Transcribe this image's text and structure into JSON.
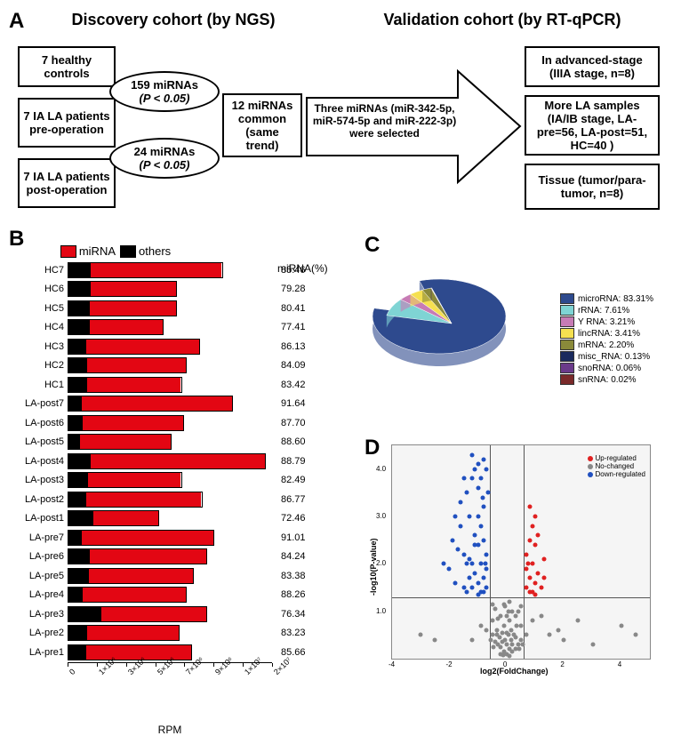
{
  "panelA": {
    "label": "A",
    "discovery_header": "Discovery cohort (by NGS)",
    "validation_header": "Validation cohort (by RT-qPCR)",
    "box1": "7 healthy controls",
    "box2": "7 IA LA patients pre-operation",
    "box3": "7 IA LA patients post-operation",
    "ellipse1_line1": "159 miRNAs",
    "ellipse1_line2": "(P < 0.05)",
    "ellipse2_line1": "24 miRNAs",
    "ellipse2_line2": "(P < 0.05)",
    "box4": "12 miRNAs common (same trend)",
    "arrow_text": "Three miRNAs (miR-342-5p, miR-574-5p and miR-222-3p) were selected",
    "vbox1": "In advanced-stage (IIIA stage, n=8)",
    "vbox2": "More LA samples (IA/IB stage, LA-pre=56, LA-post=51, HC=40 )",
    "vbox3": "Tissue (tumor/para-tumor, n=8)"
  },
  "panelB": {
    "label": "B",
    "legend_mirna": "miRNA",
    "legend_others": "others",
    "mirna_col_header": "miRNA(%)",
    "color_mirna": "#e30613",
    "color_others": "#000000",
    "x_label": "RPM",
    "x_ticks": [
      "0",
      "1×10⁶",
      "3×10⁶",
      "5×10⁶",
      "7×10⁶",
      "9×10⁶",
      "1×10⁷",
      "2×10⁷"
    ],
    "bars": [
      {
        "label": "HC7",
        "total": 1.5,
        "mirna_pct": 85.46
      },
      {
        "label": "HC6",
        "total": 1.05,
        "mirna_pct": 79.28
      },
      {
        "label": "HC5",
        "total": 1.05,
        "mirna_pct": 80.41
      },
      {
        "label": "HC4",
        "total": 0.92,
        "mirna_pct": 77.41
      },
      {
        "label": "HC3",
        "total": 1.28,
        "mirna_pct": 86.13
      },
      {
        "label": "HC2",
        "total": 1.15,
        "mirna_pct": 84.09
      },
      {
        "label": "HC1",
        "total": 1.1,
        "mirna_pct": 83.42
      },
      {
        "label": "LA-post7",
        "total": 1.6,
        "mirna_pct": 91.64
      },
      {
        "label": "LA-post6",
        "total": 1.12,
        "mirna_pct": 87.7
      },
      {
        "label": "LA-post5",
        "total": 1.0,
        "mirna_pct": 88.6
      },
      {
        "label": "LA-post4",
        "total": 1.92,
        "mirna_pct": 88.79
      },
      {
        "label": "LA-post3",
        "total": 1.1,
        "mirna_pct": 82.49
      },
      {
        "label": "LA-post2",
        "total": 1.3,
        "mirna_pct": 86.77
      },
      {
        "label": "LA-post1",
        "total": 0.88,
        "mirna_pct": 72.46
      },
      {
        "label": "LA-pre7",
        "total": 1.42,
        "mirna_pct": 91.01
      },
      {
        "label": "LA-pre6",
        "total": 1.35,
        "mirna_pct": 84.24
      },
      {
        "label": "LA-pre5",
        "total": 1.22,
        "mirna_pct": 83.38
      },
      {
        "label": "LA-pre4",
        "total": 1.15,
        "mirna_pct": 88.26
      },
      {
        "label": "LA-pre3",
        "total": 1.35,
        "mirna_pct": 76.34
      },
      {
        "label": "LA-pre2",
        "total": 1.08,
        "mirna_pct": 83.23
      },
      {
        "label": "LA-pre1",
        "total": 1.2,
        "mirna_pct": 85.66
      }
    ],
    "scale_max": 2.0
  },
  "panelC": {
    "label": "C",
    "items": [
      {
        "label": "microRNA: 83.31%",
        "color": "#2e4a8e",
        "value": 83.31
      },
      {
        "label": "rRNA: 7.61%",
        "color": "#7fd4d4",
        "value": 7.61
      },
      {
        "label": "Y RNA: 3.21%",
        "color": "#c77bb5",
        "value": 3.21
      },
      {
        "label": "lincRNA: 3.41%",
        "color": "#f5e050",
        "value": 3.41
      },
      {
        "label": "mRNA: 2.20%",
        "color": "#8a8a3a",
        "value": 2.2
      },
      {
        "label": "misc_RNA: 0.13%",
        "color": "#1a2a5e",
        "value": 0.13
      },
      {
        "label": "snoRNA: 0.06%",
        "color": "#6a3a8a",
        "value": 0.06
      },
      {
        "label": "snRNA: 0.02%",
        "color": "#7a2a2a",
        "value": 0.02
      }
    ]
  },
  "panelD": {
    "label": "D",
    "x_label": "log2(FoldChange)",
    "y_label": "-log10(P-value)",
    "legend_up": "Up-regulated",
    "legend_no": "No-changed",
    "legend_down": "Down-regulated",
    "color_up": "#e02020",
    "color_no": "#888888",
    "color_down": "#2050c0",
    "xlim": [
      -4,
      5
    ],
    "ylim": [
      0,
      4.5
    ],
    "x_ticks": [
      -4,
      -2,
      0,
      2,
      4
    ],
    "y_ticks": [
      1.0,
      2.0,
      3.0,
      4.0
    ],
    "h_threshold": 1.3,
    "v_threshold_neg": -0.58,
    "v_threshold_pos": 0.58,
    "up_points": [
      [
        0.7,
        1.5
      ],
      [
        0.8,
        1.4
      ],
      [
        0.9,
        2.0
      ],
      [
        1.0,
        1.6
      ],
      [
        0.7,
        2.2
      ],
      [
        0.8,
        2.5
      ],
      [
        1.1,
        1.8
      ],
      [
        1.3,
        2.1
      ],
      [
        0.9,
        2.8
      ],
      [
        1.0,
        2.4
      ],
      [
        0.8,
        1.7
      ],
      [
        1.2,
        1.5
      ],
      [
        0.7,
        1.9
      ],
      [
        1.0,
        3.0
      ],
      [
        0.9,
        1.4
      ],
      [
        1.1,
        2.6
      ],
      [
        0.8,
        3.2
      ],
      [
        1.3,
        1.7
      ],
      [
        1.0,
        1.35
      ],
      [
        0.75,
        2.0
      ]
    ],
    "down_points": [
      [
        -0.7,
        1.5
      ],
      [
        -0.8,
        1.4
      ],
      [
        -0.9,
        2.0
      ],
      [
        -1.0,
        1.6
      ],
      [
        -0.7,
        2.2
      ],
      [
        -0.8,
        2.5
      ],
      [
        -1.1,
        1.8
      ],
      [
        -1.3,
        2.1
      ],
      [
        -0.9,
        2.8
      ],
      [
        -1.0,
        2.4
      ],
      [
        -0.8,
        1.7
      ],
      [
        -1.2,
        1.5
      ],
      [
        -0.7,
        1.9
      ],
      [
        -1.0,
        3.0
      ],
      [
        -0.9,
        1.4
      ],
      [
        -1.1,
        2.6
      ],
      [
        -0.8,
        3.2
      ],
      [
        -1.3,
        1.7
      ],
      [
        -1.0,
        1.35
      ],
      [
        -0.75,
        2.0
      ],
      [
        -1.5,
        2.2
      ],
      [
        -1.4,
        3.5
      ],
      [
        -1.8,
        1.6
      ],
      [
        -1.2,
        3.8
      ],
      [
        -1.6,
        2.8
      ],
      [
        -2.0,
        1.9
      ],
      [
        -1.4,
        2.0
      ],
      [
        -1.1,
        4.0
      ],
      [
        -1.7,
        2.3
      ],
      [
        -1.3,
        3.0
      ],
      [
        -1.5,
        1.5
      ],
      [
        -1.9,
        2.5
      ],
      [
        -1.2,
        2.0
      ],
      [
        -1.6,
        3.3
      ],
      [
        -1.0,
        3.6
      ],
      [
        -2.2,
        2.0
      ],
      [
        -1.8,
        3.0
      ],
      [
        -1.4,
        1.4
      ],
      [
        -1.5,
        3.8
      ],
      [
        -1.1,
        2.4
      ],
      [
        -0.65,
        3.5
      ],
      [
        -0.7,
        4.0
      ],
      [
        -0.8,
        4.2
      ],
      [
        -0.9,
        3.8
      ],
      [
        -1.0,
        4.1
      ],
      [
        -1.2,
        4.3
      ],
      [
        -0.85,
        3.4
      ]
    ],
    "no_points": [
      [
        0,
        0.1
      ],
      [
        0.1,
        0.2
      ],
      [
        -0.1,
        0.15
      ],
      [
        0.2,
        0.3
      ],
      [
        -0.2,
        0.25
      ],
      [
        0.05,
        0.5
      ],
      [
        -0.05,
        0.4
      ],
      [
        0.15,
        0.6
      ],
      [
        -0.15,
        0.55
      ],
      [
        0.3,
        0.2
      ],
      [
        -0.3,
        0.3
      ],
      [
        0.1,
        0.8
      ],
      [
        -0.1,
        0.7
      ],
      [
        0,
        0.9
      ],
      [
        0.25,
        0.5
      ],
      [
        -0.25,
        0.45
      ],
      [
        0.4,
        0.3
      ],
      [
        -0.4,
        0.35
      ],
      [
        0.05,
        1.0
      ],
      [
        -0.05,
        1.1
      ],
      [
        0.5,
        0.4
      ],
      [
        -0.5,
        0.5
      ],
      [
        0.2,
        1.0
      ],
      [
        -0.2,
        0.9
      ],
      [
        0.35,
        0.7
      ],
      [
        -0.35,
        0.6
      ],
      [
        0.1,
        1.2
      ],
      [
        -0.1,
        1.15
      ],
      [
        0,
        0.3
      ],
      [
        0.45,
        0.2
      ],
      [
        -0.45,
        0.25
      ],
      [
        0.15,
        0.4
      ],
      [
        -0.15,
        0.35
      ],
      [
        0.3,
        0.9
      ],
      [
        -0.3,
        0.85
      ],
      [
        0.5,
        0.7
      ],
      [
        -0.5,
        0.8
      ],
      [
        0.55,
        0.3
      ],
      [
        -0.55,
        0.4
      ],
      [
        0.4,
        1.0
      ],
      [
        -0.4,
        1.05
      ],
      [
        0.2,
        0.15
      ],
      [
        -0.2,
        0.1
      ],
      [
        0,
        0.55
      ],
      [
        0.3,
        0.45
      ],
      [
        -0.35,
        0.5
      ],
      [
        0.5,
        1.1
      ],
      [
        -0.5,
        1.15
      ],
      [
        0.1,
        0.05
      ],
      [
        -0.12,
        0.08
      ],
      [
        1.5,
        0.5
      ],
      [
        2.0,
        0.4
      ],
      [
        3.0,
        0.3
      ],
      [
        4.0,
        0.7
      ],
      [
        4.5,
        0.5
      ],
      [
        2.5,
        0.8
      ],
      [
        1.8,
        0.6
      ],
      [
        -2.5,
        0.4
      ],
      [
        -3.0,
        0.5
      ],
      [
        0.7,
        0.5
      ],
      [
        -0.7,
        0.6
      ],
      [
        0.9,
        0.8
      ],
      [
        -0.9,
        0.7
      ],
      [
        1.2,
        0.9
      ],
      [
        -1.2,
        0.4
      ]
    ]
  }
}
